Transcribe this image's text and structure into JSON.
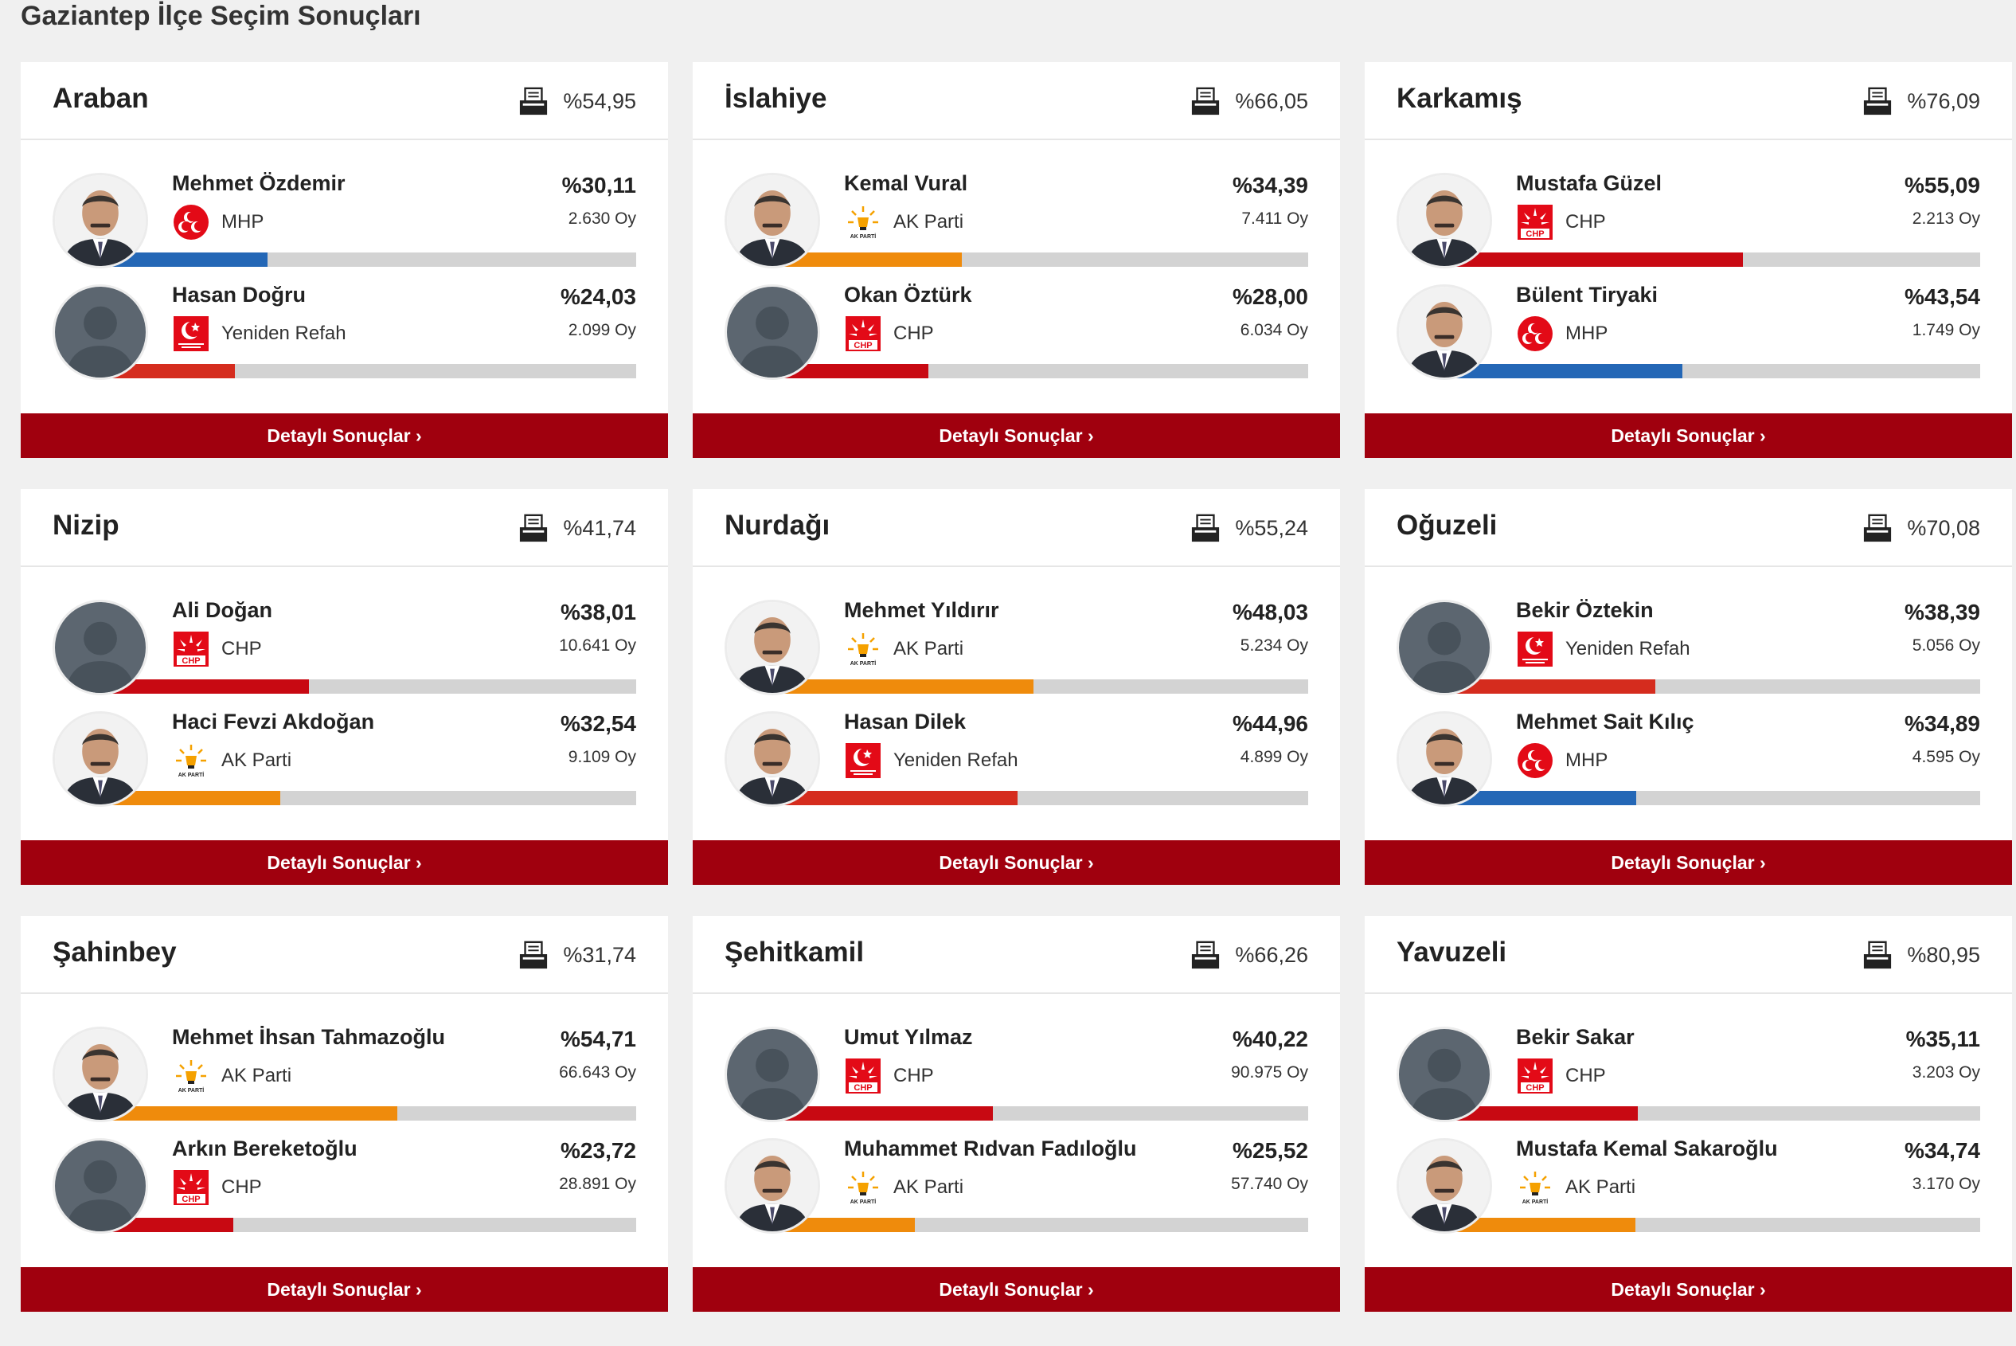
{
  "page": {
    "title": "Gaziantep İlçe Seçim Sonuçları",
    "details_label": "Detaylı Sonuçlar ›"
  },
  "colors": {
    "MHP": "#2467b6",
    "AK Parti": "#ef8b0c",
    "CHP": "#c80912",
    "Yeniden Refah": "#d52c1e"
  },
  "districts": [
    {
      "name": "Araban",
      "turnout": "%54,95",
      "candidates": [
        {
          "name": "Mehmet Özdemir",
          "party": "MHP",
          "pct": "%30,11",
          "votes": "2.630 Oy",
          "share": 30.11,
          "photo": "real"
        },
        {
          "name": "Hasan Doğru",
          "party": "Yeniden Refah",
          "pct": "%24,03",
          "votes": "2.099 Oy",
          "share": 24.03,
          "photo": "placeholder"
        }
      ]
    },
    {
      "name": "İslahiye",
      "turnout": "%66,05",
      "candidates": [
        {
          "name": "Kemal Vural",
          "party": "AK Parti",
          "pct": "%34,39",
          "votes": "7.411 Oy",
          "share": 34.39,
          "photo": "real"
        },
        {
          "name": "Okan Öztürk",
          "party": "CHP",
          "pct": "%28,00",
          "votes": "6.034 Oy",
          "share": 28.0,
          "photo": "placeholder"
        }
      ]
    },
    {
      "name": "Karkamış",
      "turnout": "%76,09",
      "candidates": [
        {
          "name": "Mustafa Güzel",
          "party": "CHP",
          "pct": "%55,09",
          "votes": "2.213 Oy",
          "share": 55.09,
          "photo": "real"
        },
        {
          "name": "Bülent Tiryaki",
          "party": "MHP",
          "pct": "%43,54",
          "votes": "1.749 Oy",
          "share": 43.54,
          "photo": "real"
        }
      ]
    },
    {
      "name": "Nizip",
      "turnout": "%41,74",
      "candidates": [
        {
          "name": "Ali Doğan",
          "party": "CHP",
          "pct": "%38,01",
          "votes": "10.641 Oy",
          "share": 38.01,
          "photo": "placeholder"
        },
        {
          "name": "Haci Fevzi Akdoğan",
          "party": "AK Parti",
          "pct": "%32,54",
          "votes": "9.109 Oy",
          "share": 32.54,
          "photo": "real"
        }
      ]
    },
    {
      "name": "Nurdağı",
      "turnout": "%55,24",
      "candidates": [
        {
          "name": "Mehmet Yıldırır",
          "party": "AK Parti",
          "pct": "%48,03",
          "votes": "5.234 Oy",
          "share": 48.03,
          "photo": "real"
        },
        {
          "name": "Hasan Dilek",
          "party": "Yeniden Refah",
          "pct": "%44,96",
          "votes": "4.899 Oy",
          "share": 44.96,
          "photo": "real"
        }
      ]
    },
    {
      "name": "Oğuzeli",
      "turnout": "%70,08",
      "candidates": [
        {
          "name": "Bekir Öztekin",
          "party": "Yeniden Refah",
          "pct": "%38,39",
          "votes": "5.056 Oy",
          "share": 38.39,
          "photo": "placeholder"
        },
        {
          "name": "Mehmet Sait Kılıç",
          "party": "MHP",
          "pct": "%34,89",
          "votes": "4.595 Oy",
          "share": 34.89,
          "photo": "real"
        }
      ]
    },
    {
      "name": "Şahinbey",
      "turnout": "%31,74",
      "candidates": [
        {
          "name": "Mehmet İhsan Tahmazoğlu",
          "party": "AK Parti",
          "pct": "%54,71",
          "votes": "66.643 Oy",
          "share": 54.71,
          "photo": "real"
        },
        {
          "name": "Arkın Bereketoğlu",
          "party": "CHP",
          "pct": "%23,72",
          "votes": "28.891 Oy",
          "share": 23.72,
          "photo": "placeholder"
        }
      ]
    },
    {
      "name": "Şehitkamil",
      "turnout": "%66,26",
      "candidates": [
        {
          "name": "Umut Yılmaz",
          "party": "CHP",
          "pct": "%40,22",
          "votes": "90.975 Oy",
          "share": 40.22,
          "photo": "placeholder"
        },
        {
          "name": "Muhammet Rıdvan Fadıloğlu",
          "party": "AK Parti",
          "pct": "%25,52",
          "votes": "57.740 Oy",
          "share": 25.52,
          "photo": "real"
        }
      ]
    },
    {
      "name": "Yavuzeli",
      "turnout": "%80,95",
      "candidates": [
        {
          "name": "Bekir Sakar",
          "party": "CHP",
          "pct": "%35,11",
          "votes": "3.203 Oy",
          "share": 35.11,
          "photo": "placeholder"
        },
        {
          "name": "Mustafa Kemal Sakaroğlu",
          "party": "AK Parti",
          "pct": "%34,74",
          "votes": "3.170 Oy",
          "share": 34.74,
          "photo": "real"
        }
      ]
    }
  ]
}
